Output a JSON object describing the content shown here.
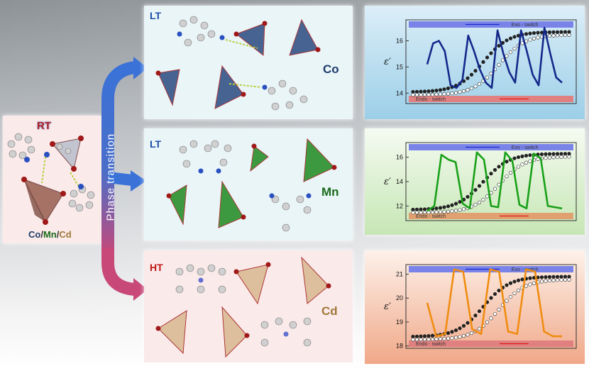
{
  "left_panel": {
    "label": "RT",
    "footer": {
      "co": "Co",
      "sep1": "/",
      "mn": "Mn",
      "sep2": "/",
      "cd": "Cd"
    }
  },
  "arrow_label": "Phase transition",
  "rows": [
    {
      "phase": "LT",
      "metal": "Co"
    },
    {
      "phase": "LT",
      "metal": "Mn"
    },
    {
      "phase": "HT",
      "metal": "Cd"
    }
  ],
  "colors": {
    "co": "#1f3d6b",
    "mn": "#1a6b1a",
    "cd": "#a07838",
    "rt": "#b02020",
    "lt": "#1a4fa8",
    "ht": "#c01818"
  },
  "chart_data": [
    {
      "type": "line",
      "ylabel": "ε′",
      "yticks": [
        "14",
        "15",
        "16"
      ],
      "ylim": [
        13.6,
        16.8
      ],
      "exo_label": "Exo - switch",
      "endo_label": "Endo - switch",
      "series": [
        {
          "values": [
            15.1,
            15.9,
            16.0,
            15.6,
            14.3,
            14.2,
            14.5,
            16.2,
            15.6,
            14.9,
            14.4,
            14.2,
            16.4,
            15.5,
            14.8,
            14.4,
            16.4,
            15.6,
            14.7,
            14.3,
            16.5,
            15.5,
            14.6,
            14.4
          ]
        }
      ]
    },
    {
      "type": "line",
      "ylabel": "ε′",
      "yticks": [
        "12",
        "14",
        "16"
      ],
      "ylim": [
        10.8,
        17.2
      ],
      "exo_label": "Exo - switch",
      "endo_label": "Endo - switch",
      "series": [
        {
          "values": [
            11.6,
            12.0,
            16.2,
            15.8,
            15.6,
            12.2,
            11.8,
            16.4,
            15.8,
            12.0,
            11.9,
            16.4,
            15.7,
            12.1,
            11.8,
            16.3,
            15.9,
            12.0,
            11.9,
            11.8
          ]
        }
      ]
    },
    {
      "type": "line",
      "ylabel": "ε′",
      "yticks": [
        "18",
        "19",
        "20",
        "21"
      ],
      "ylim": [
        17.9,
        21.4
      ],
      "exo_label": "Exo - switch",
      "endo_label": "Endo - switch",
      "series": [
        {
          "values": [
            19.8,
            18.4,
            18.5,
            21.2,
            21.1,
            18.7,
            18.5,
            21.2,
            21.1,
            18.6,
            18.5,
            21.2,
            21.1,
            18.6,
            18.4,
            18.4
          ]
        }
      ]
    }
  ]
}
